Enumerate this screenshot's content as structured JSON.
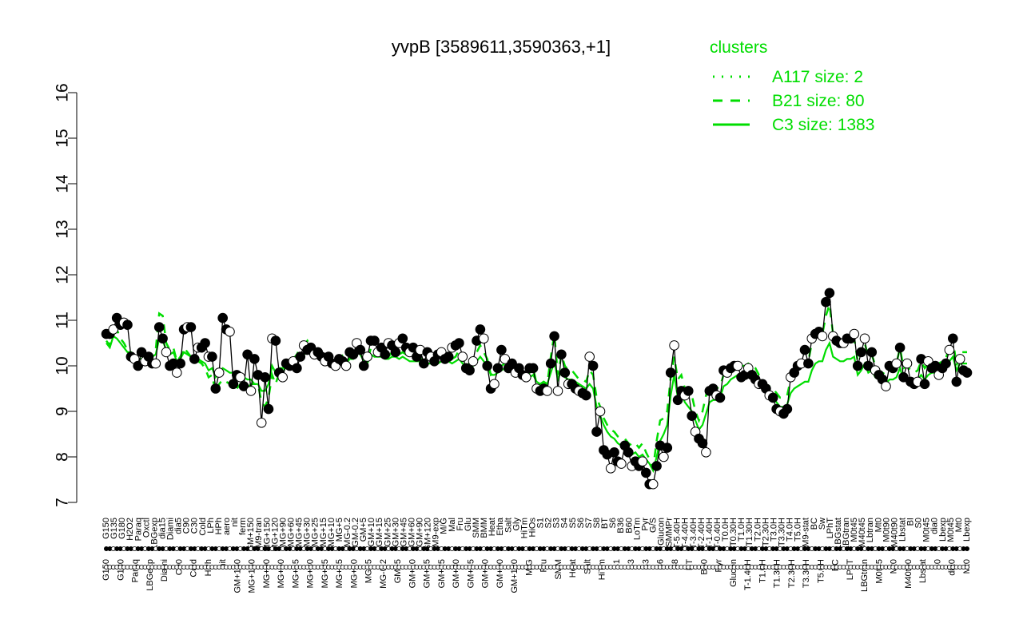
{
  "chart_data": {
    "type": "line",
    "title": "yvpB [3589611,3590363,+1]",
    "xlabel": "",
    "ylabel": "",
    "ylim": [
      7,
      16
    ],
    "yticks": [
      7,
      8,
      9,
      10,
      11,
      12,
      13,
      14,
      15,
      16
    ],
    "grid": false,
    "legend": {
      "title": "clusters",
      "placement": "top-right",
      "entries": [
        {
          "label": "A117 size: 2",
          "style": "dotted"
        },
        {
          "label": "B21 size: 80",
          "style": "dashed"
        },
        {
          "label": "C3 size: 1383",
          "style": "solid"
        }
      ]
    },
    "colors": {
      "cluster_line": "#00dd00",
      "points": "#000000",
      "axes": "#000000"
    },
    "upper_labels": [
      "G150",
      "G135",
      "G180",
      "H2O2",
      "Paraq",
      "Oxctl",
      "LBGexp",
      "dia15",
      "Diami",
      "dia5",
      "C90",
      "C30",
      "Cold",
      "LPh",
      "HPh",
      "aero",
      "nit",
      "ferm",
      "GM+150",
      "M9-tran",
      "MG+150",
      "MG+120",
      "MG+90",
      "MG+60",
      "MG+45",
      "MG+30",
      "MG+25",
      "MG+15",
      "MG+10",
      "MG+5",
      "MG-0.2",
      "GM-0.2",
      "GM+5",
      "GM+10",
      "GM+15",
      "GM+25",
      "GM+30",
      "GM+45",
      "GM+60",
      "GM+90",
      "GM+120",
      "M9-exp",
      "M/G",
      "Mal",
      "Fru",
      "Glu",
      "SMM",
      "BMM",
      "Heat",
      "Etha",
      "Salt",
      "Gly",
      "HiTm",
      "HiOs",
      "S1",
      "S2",
      "S3",
      "S4",
      "S5",
      "S6",
      "S7",
      "S8",
      "BT",
      "S6",
      "B36",
      "B60",
      "LoTm",
      "Pyr",
      "G/S",
      "Glucon",
      "SMMPr",
      "T-5.40H",
      "T-4.40H",
      "T-3.40H",
      "T-2.40H",
      "T-1.40H",
      "T-0.40H",
      "T0.0H",
      "T0.30H",
      "T1.0H",
      "T1.30H",
      "T2.0H",
      "T2.30H",
      "T3.0H",
      "T3.30H",
      "T4.0H",
      "T5.0H",
      "M9-stat",
      "BC",
      "Sw",
      "LPhT",
      "LBGstat",
      "LBGtran",
      "M0t45",
      "M40t45",
      "Lbtran",
      "Mt0",
      "M0t90",
      "M40t90",
      "Lbstat",
      "BI",
      "S0",
      "M0t45",
      "dia0",
      "Lbexp",
      "M0t45",
      "Mt0",
      "Lbexp"
    ],
    "lower_labels": [
      "G150",
      "G180",
      "Paraq",
      "LBGexp",
      "Diami",
      "C90",
      "Cold",
      "HPh",
      "nit",
      "GM+150",
      "MG+150",
      "MG+90",
      "MG+60",
      "MG+45",
      "MG+30",
      "MG+25",
      "MG+15",
      "MG+10",
      "MG+5",
      "MG-0.2",
      "GM+5",
      "GM+10",
      "GM+15",
      "GM+25",
      "GM+30",
      "GM+45",
      "GM+60",
      "GM+90",
      "GM+120",
      "M/G",
      "Fru",
      "SMM",
      "Heat",
      "Salt",
      "HiTm",
      "S1",
      "S3",
      "S3",
      "S6",
      "S8",
      "BT",
      "B60",
      "Pyr",
      "Glucon",
      "T-1.40H",
      "T1.0H",
      "T1.30H",
      "T2.30H",
      "T3.30H",
      "T5.0H",
      "BC",
      "LPhT",
      "LBGtran",
      "M0t45",
      "Mt0",
      "M40t90",
      "Lbstat",
      "S0",
      "dia0",
      "Mt0"
    ],
    "series": [
      {
        "name": "",
        "values": [
          10.7,
          10.7,
          10.8,
          11.05,
          10.9,
          10.95,
          10.9,
          10.2,
          10.15,
          10.0,
          10.3,
          10.1,
          10.2,
          10.05,
          10.05,
          10.85,
          10.6,
          10.3,
          10.0,
          10.05,
          9.85,
          10.05,
          10.8,
          10.85,
          10.85,
          10.15,
          10.4,
          10.4,
          10.5,
          10.2,
          10.2,
          9.5,
          9.85,
          11.05,
          10.8,
          10.75,
          9.6,
          9.8,
          9.75,
          9.55,
          10.25,
          9.45,
          10.15,
          9.8,
          8.75,
          9.75,
          9.05,
          10.6,
          10.55,
          9.85,
          9.75,
          10.05,
          10.0,
          10.1,
          9.95,
          10.2,
          10.45,
          10.35,
          10.4,
          10.25,
          10.3,
          10.2,
          10.1,
          10.2,
          10.05,
          10.0,
          10.15,
          10.1,
          10.0,
          10.3,
          10.25,
          10.5,
          10.35,
          10.0,
          10.2,
          10.55,
          10.55,
          10.3,
          10.4,
          10.25,
          10.5,
          10.45,
          10.3,
          10.5,
          10.6,
          10.4,
          10.3,
          10.4,
          10.2,
          10.35,
          10.05,
          10.3,
          10.2,
          10.1,
          10.25,
          10.3,
          10.15,
          10.2,
          10.4,
          10.45,
          10.5,
          10.2,
          9.95,
          9.9,
          10.1,
          10.55,
          10.8,
          10.6,
          10.0,
          9.5,
          9.6,
          9.95,
          10.35,
          10.15,
          9.95,
          10.05,
          9.85,
          9.95,
          9.8,
          9.75,
          9.95,
          9.95,
          9.5,
          9.45,
          9.5,
          9.45,
          10.05,
          10.65,
          9.45,
          10.25,
          9.85,
          9.6,
          9.6,
          9.5,
          9.45,
          9.4,
          9.35,
          10.2,
          10.0,
          8.55,
          9.0,
          8.15,
          8.05,
          7.75,
          8.1,
          7.9,
          7.85,
          8.25,
          8.1,
          7.8,
          7.9,
          7.8,
          7.9,
          7.65,
          7.4,
          7.4,
          7.8,
          8.25,
          8.0,
          8.2,
          9.85,
          10.45,
          9.25,
          9.45,
          9.35,
          9.45,
          8.9,
          8.55,
          8.4,
          8.3,
          8.1,
          9.45,
          9.5,
          9.35,
          9.3,
          9.9,
          9.85,
          9.95,
          10.0,
          10.0,
          9.75,
          9.8,
          9.95,
          9.8,
          9.7,
          9.6,
          9.6,
          9.5,
          9.35,
          9.3,
          9.05,
          9.0,
          8.95,
          9.05,
          9.75,
          9.85,
          10.0,
          10.05,
          10.35,
          10.05,
          10.6,
          10.7,
          10.75,
          10.65,
          11.4,
          11.6,
          10.65,
          10.55,
          10.5,
          10.5,
          10.6,
          10.6,
          10.7,
          10.0,
          10.3,
          10.6,
          10.0,
          10.3,
          9.9,
          9.8,
          9.7,
          9.55,
          10.0,
          9.95,
          10.05,
          10.4,
          9.75,
          10.05,
          9.65,
          9.6,
          9.65,
          10.15,
          9.6,
          10.1,
          9.95,
          10.0,
          9.8,
          9.95,
          10.05,
          10.35,
          10.6,
          9.65,
          10.15,
          9.9,
          9.85
        ]
      },
      {
        "name": "",
        "values": [
          10.55,
          10.45,
          10.95,
          10.8,
          10.6,
          10.5,
          10.35,
          10.3,
          10.1,
          10.1,
          10.1,
          10.35,
          10.25,
          10.2,
          10.35,
          11.15,
          11.1,
          10.5,
          10.35,
          10.4,
          10.1,
          10.2,
          10.4,
          10.3,
          10.2,
          10.1,
          10.1,
          10.05,
          9.95,
          9.75,
          9.8,
          9.4,
          9.6,
          9.7,
          9.65,
          9.6,
          9.65,
          9.5,
          9.6,
          9.55,
          9.5,
          9.6,
          9.6,
          9.6,
          9.2,
          9.1,
          9.3,
          9.8,
          9.6,
          9.85,
          9.85,
          10.0,
          10.0,
          10.15,
          10.25,
          10.4,
          10.45,
          10.55,
          10.4,
          10.4,
          10.3,
          10.3,
          10.2,
          10.05,
          10.1,
          10.1,
          10.0,
          10.2,
          10.0,
          10.2,
          10.2,
          10.45,
          10.4,
          10.15,
          10.05,
          10.4,
          10.3,
          10.3,
          10.35,
          10.25,
          10.2,
          10.3,
          10.3,
          10.25,
          10.3,
          10.25,
          10.2,
          10.2,
          10.15,
          10.15,
          10.2,
          10.15,
          10.15,
          10.1,
          10.1,
          10.2,
          10.3,
          10.25,
          10.15,
          10.2,
          10.35,
          10.2,
          10.0,
          10.05,
          10.1,
          10.3,
          10.45,
          10.3,
          10.15,
          9.8,
          9.85,
          9.9,
          10.0,
          10.05,
          10.0,
          10.0,
          9.9,
          9.85,
          9.85,
          9.8,
          9.85,
          9.95,
          9.6,
          9.6,
          9.65,
          9.6,
          10.2,
          10.7,
          9.8,
          10.25,
          10.0,
          9.9,
          9.9,
          9.8,
          9.7,
          9.7,
          9.65,
          9.9,
          9.8,
          9.3,
          9.1,
          8.85,
          8.7,
          8.6,
          8.55,
          8.45,
          8.4,
          8.4,
          8.3,
          8.25,
          8.3,
          8.2,
          8.3,
          8.1,
          7.95,
          7.75,
          8.35,
          8.8,
          8.85,
          9.0,
          9.75,
          10.2,
          9.7,
          9.8,
          9.5,
          9.4,
          9.35,
          9.0,
          8.8,
          9.0,
          9.35,
          9.6,
          9.5,
          9.5,
          9.55,
          9.8,
          9.9,
          10.0,
          10.05,
          10.1,
          10.0,
          10.0,
          10.05,
          10.0,
          9.95,
          9.8,
          9.75,
          9.6,
          9.55,
          9.5,
          9.4,
          9.3,
          9.3,
          9.35,
          9.7,
          9.8,
          9.95,
          10.05,
          10.1,
          10.1,
          10.5,
          10.65,
          10.7,
          10.7,
          11.1,
          11.35,
          10.7,
          10.6,
          10.55,
          10.5,
          10.55,
          10.6,
          10.6,
          10.1,
          10.25,
          10.5,
          10.2,
          10.25,
          10.0,
          9.9,
          9.85,
          9.8,
          9.95,
          10.0,
          10.05,
          10.4,
          9.95,
          10.0,
          9.9,
          9.85,
          9.9,
          10.1,
          9.95,
          10.05,
          10.1,
          10.05,
          10.05,
          10.1,
          10.15,
          10.45,
          10.6,
          10.0,
          10.3,
          10.3,
          10.3
        ]
      },
      {
        "name": "",
        "values": [
          10.5,
          10.4,
          10.65,
          10.6,
          10.5,
          10.4,
          10.3,
          10.3,
          10.15,
          10.15,
          10.15,
          10.25,
          10.25,
          10.2,
          10.25,
          10.6,
          10.55,
          10.35,
          10.25,
          10.3,
          10.1,
          10.15,
          10.3,
          10.25,
          10.2,
          10.15,
          10.15,
          10.1,
          10.05,
          9.9,
          9.95,
          9.75,
          9.85,
          9.95,
          9.9,
          9.85,
          9.85,
          9.75,
          9.8,
          9.75,
          9.7,
          9.7,
          9.6,
          9.6,
          9.45,
          9.45,
          9.6,
          10.0,
          9.85,
          9.95,
          9.95,
          10.0,
          10.0,
          10.1,
          10.15,
          10.2,
          10.25,
          10.3,
          10.25,
          10.25,
          10.25,
          10.2,
          10.15,
          10.1,
          10.1,
          10.1,
          10.05,
          10.15,
          10.05,
          10.15,
          10.15,
          10.3,
          10.25,
          10.1,
          10.05,
          10.25,
          10.2,
          10.2,
          10.2,
          10.15,
          10.15,
          10.2,
          10.2,
          10.15,
          10.2,
          10.15,
          10.1,
          10.1,
          10.1,
          10.1,
          10.1,
          10.05,
          10.05,
          10.05,
          10.05,
          10.1,
          10.15,
          10.1,
          10.05,
          10.1,
          10.15,
          10.05,
          9.95,
          9.95,
          10.0,
          10.1,
          10.2,
          10.1,
          10.0,
          9.8,
          9.8,
          9.85,
          9.9,
          9.95,
          9.9,
          9.9,
          9.85,
          9.8,
          9.8,
          9.75,
          9.75,
          9.8,
          9.65,
          9.6,
          9.6,
          9.6,
          9.85,
          10.1,
          9.7,
          9.9,
          9.75,
          9.7,
          9.7,
          9.65,
          9.6,
          9.55,
          9.5,
          9.6,
          9.5,
          9.1,
          8.9,
          8.7,
          8.55,
          8.45,
          8.4,
          8.3,
          8.25,
          8.2,
          8.1,
          8.05,
          8.1,
          8.0,
          8.05,
          7.95,
          7.85,
          7.7,
          8.0,
          8.35,
          8.5,
          8.7,
          9.35,
          9.8,
          9.3,
          9.4,
          9.2,
          9.1,
          9.0,
          8.8,
          8.6,
          8.7,
          8.95,
          9.2,
          9.25,
          9.25,
          9.3,
          9.55,
          9.6,
          9.7,
          9.75,
          9.8,
          9.75,
          9.75,
          9.75,
          9.7,
          9.65,
          9.55,
          9.5,
          9.4,
          9.35,
          9.3,
          9.2,
          9.1,
          9.1,
          9.15,
          9.4,
          9.5,
          9.55,
          9.6,
          9.65,
          9.65,
          9.9,
          10.05,
          10.1,
          10.1,
          10.35,
          10.5,
          10.2,
          10.15,
          10.1,
          10.1,
          10.15,
          10.15,
          10.2,
          9.8,
          9.9,
          10.05,
          9.85,
          9.9,
          9.75,
          9.7,
          9.65,
          9.6,
          9.7,
          9.7,
          9.75,
          9.95,
          9.7,
          9.75,
          9.65,
          9.65,
          9.7,
          9.8,
          9.7,
          9.8,
          9.85,
          9.85,
          9.85,
          9.9,
          9.95,
          10.1,
          10.2,
          9.9,
          10.05,
          10.05,
          10.05
        ]
      }
    ]
  }
}
